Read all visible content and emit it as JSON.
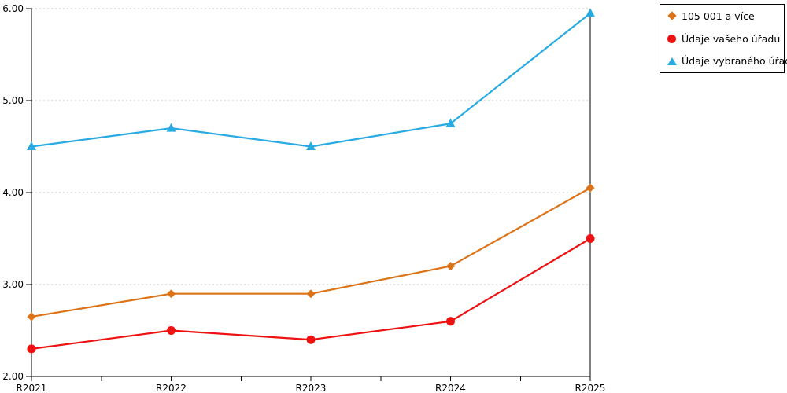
{
  "chart_data": {
    "type": "line",
    "title": "",
    "xlabel": "",
    "ylabel": "",
    "categories": [
      "R2021",
      "R2022",
      "R2023",
      "R2024",
      "R2025"
    ],
    "series": [
      {
        "name": "105 001 a více",
        "color": "#DC7318",
        "marker": "diamond",
        "values": [
          2.65,
          2.9,
          2.9,
          3.2,
          4.05
        ]
      },
      {
        "name": "Údaje vašeho úřadu",
        "color": "#EE1111",
        "marker": "circle",
        "values": [
          2.3,
          2.5,
          2.4,
          2.6,
          3.5
        ]
      },
      {
        "name": "Údaje vybraného úřadu",
        "color": "#29ABE2",
        "marker": "triangle",
        "values": [
          4.5,
          4.7,
          4.5,
          4.75,
          5.95
        ]
      }
    ],
    "ylim": [
      2.0,
      6.0
    ],
    "y_ticks": [
      "2.00",
      "3.00",
      "4.00",
      "5.00",
      "6.00"
    ],
    "x_minor_ticks_between_categories": true,
    "grid": "horizontal-dotted",
    "legend_position": "top-right-outside-plot"
  },
  "colors": {
    "axis": "#000000",
    "grid": "#c4c4c4",
    "background": "#ffffff",
    "text": "#000000"
  }
}
